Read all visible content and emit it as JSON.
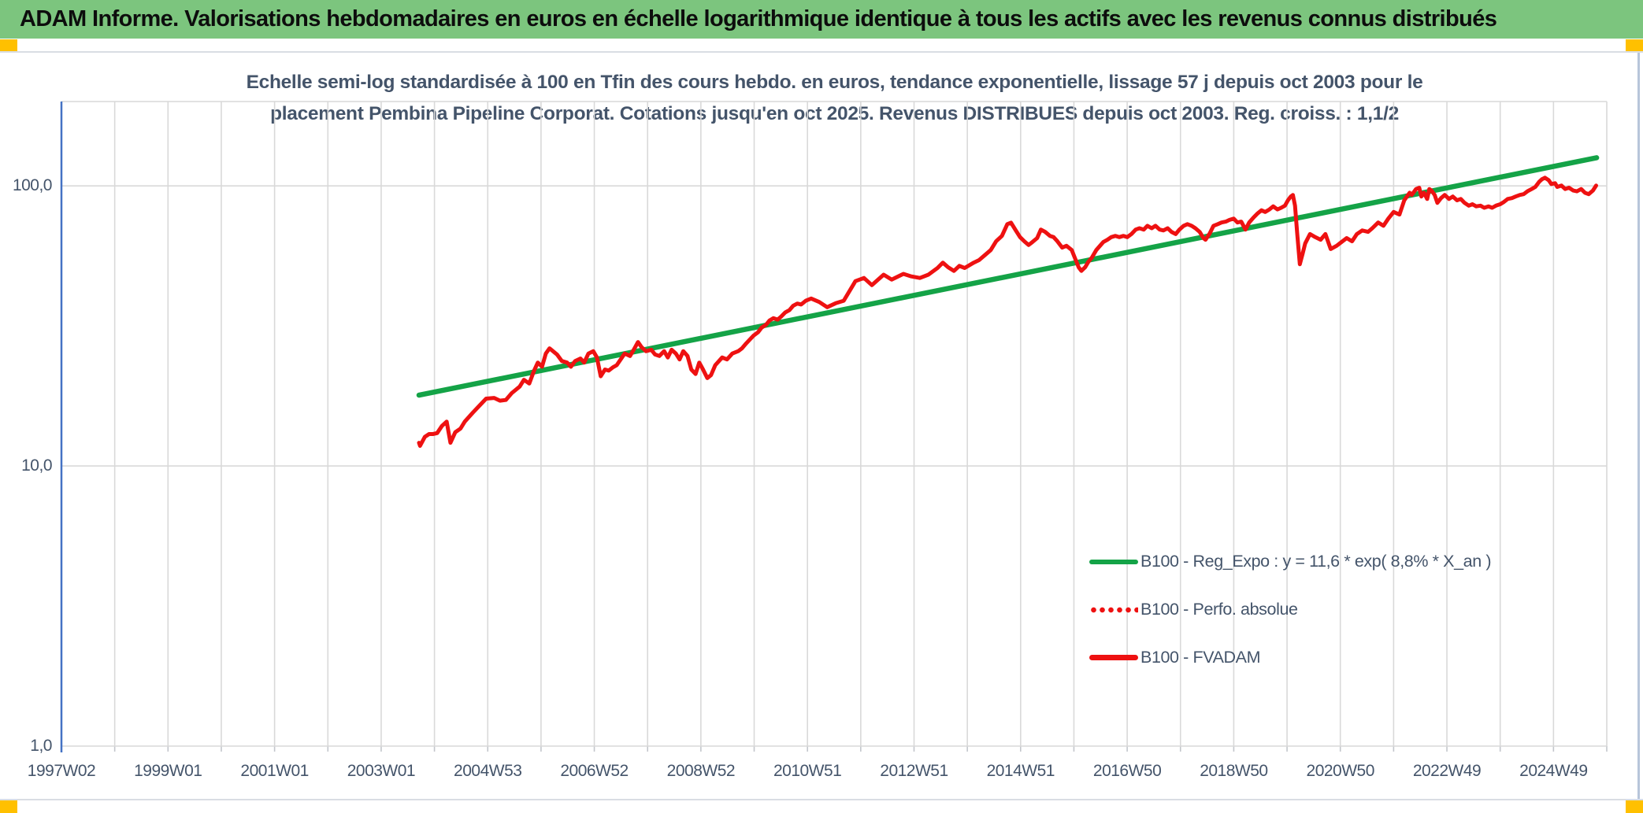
{
  "window": {
    "title": "ADAM Informe. Valorisations hebdomadaires en euros en échelle logarithmique identique à tous les actifs avec les revenus connus distribués"
  },
  "colors": {
    "header_green": "#7cc57e",
    "corner_yellow": "#ffc000",
    "trend_green": "#14a347",
    "series_red": "#ee1111",
    "grid": "#d9d9d9",
    "axis_blue": "#4472c4",
    "text_dark": "#44546a"
  },
  "chart_data": {
    "type": "line",
    "title_lines": [
      "Echelle semi-log standardisée à 100 en Tfin des cours hebdo. en euros, tendance exponentielle, lissage 57 j depuis oct 2003 pour le",
      "placement Pembina Pipeline Corporat. Cotations jusqu'en oct 2025. Revenus DISTRIBUES depuis oct 2003. Reg. croiss. : 1,1/2"
    ],
    "x_axis": {
      "tick_labels": [
        "1997W02",
        "1999W01",
        "2001W01",
        "2003W01",
        "2004W53",
        "2006W52",
        "2008W52",
        "2010W51",
        "2012W51",
        "2014W51",
        "2016W50",
        "2018W50",
        "2020W50",
        "2022W49",
        "2024W49"
      ],
      "range_years": [
        1997.03,
        2026.03
      ],
      "gridline_interval_years": 1
    },
    "y_axis": {
      "scale": "log10",
      "tick_labels": [
        "100,0",
        "10,0",
        "1,0"
      ],
      "tick_values": [
        100,
        10,
        1
      ],
      "ylim": [
        1,
        200
      ]
    },
    "legend": [
      {
        "label": "B100 - Reg_Expo : y = 11,6 * exp( 8,8% *  X_an )",
        "color": "#14a347",
        "style": "solid"
      },
      {
        "label": "B100 - Perfo. absolue",
        "color": "#ee1111",
        "style": "dotted"
      },
      {
        "label": "B100 - FVADAM",
        "color": "#ee1111",
        "style": "solid-thick"
      }
    ],
    "series": [
      {
        "name": "B100 - Reg_Expo",
        "color": "#14a347",
        "width": 6.5,
        "points": [
          [
            2003.74,
            17.9
          ],
          [
            2025.84,
            126.0
          ]
        ]
      },
      {
        "name": "B100 - FVADAM",
        "color": "#ee1111",
        "width": 5,
        "points": [
          [
            2003.74,
            12.1
          ],
          [
            2003.76,
            11.8
          ],
          [
            2003.85,
            12.7
          ],
          [
            2003.93,
            13.0
          ],
          [
            2004.0,
            13.0
          ],
          [
            2004.08,
            13.1
          ],
          [
            2004.17,
            13.9
          ],
          [
            2004.26,
            14.4
          ],
          [
            2004.33,
            12.1
          ],
          [
            2004.42,
            13.2
          ],
          [
            2004.52,
            13.6
          ],
          [
            2004.6,
            14.4
          ],
          [
            2004.75,
            15.5
          ],
          [
            2004.86,
            16.3
          ],
          [
            2005.0,
            17.4
          ],
          [
            2005.15,
            17.5
          ],
          [
            2005.26,
            17.1
          ],
          [
            2005.37,
            17.2
          ],
          [
            2005.48,
            18.2
          ],
          [
            2005.63,
            19.2
          ],
          [
            2005.71,
            20.3
          ],
          [
            2005.81,
            19.7
          ],
          [
            2005.9,
            21.9
          ],
          [
            2005.97,
            23.4
          ],
          [
            2006.05,
            22.6
          ],
          [
            2006.12,
            25.2
          ],
          [
            2006.19,
            26.3
          ],
          [
            2006.33,
            25.0
          ],
          [
            2006.42,
            23.7
          ],
          [
            2006.52,
            23.4
          ],
          [
            2006.59,
            22.6
          ],
          [
            2006.67,
            23.7
          ],
          [
            2006.77,
            24.2
          ],
          [
            2006.84,
            23.4
          ],
          [
            2006.92,
            25.2
          ],
          [
            2007.01,
            25.7
          ],
          [
            2007.08,
            24.4
          ],
          [
            2007.15,
            20.9
          ],
          [
            2007.23,
            22.1
          ],
          [
            2007.3,
            21.9
          ],
          [
            2007.38,
            22.5
          ],
          [
            2007.45,
            22.9
          ],
          [
            2007.55,
            24.4
          ],
          [
            2007.6,
            25.2
          ],
          [
            2007.7,
            24.7
          ],
          [
            2007.77,
            26.0
          ],
          [
            2007.85,
            27.7
          ],
          [
            2007.92,
            26.5
          ],
          [
            2008.0,
            25.7
          ],
          [
            2008.1,
            26.0
          ],
          [
            2008.17,
            25.0
          ],
          [
            2008.25,
            24.7
          ],
          [
            2008.34,
            25.7
          ],
          [
            2008.41,
            24.4
          ],
          [
            2008.48,
            26.0
          ],
          [
            2008.56,
            25.2
          ],
          [
            2008.63,
            24.0
          ],
          [
            2008.7,
            25.7
          ],
          [
            2008.78,
            24.7
          ],
          [
            2008.85,
            22.1
          ],
          [
            2008.93,
            21.3
          ],
          [
            2009.0,
            23.4
          ],
          [
            2009.07,
            22.1
          ],
          [
            2009.15,
            20.6
          ],
          [
            2009.22,
            21.1
          ],
          [
            2009.3,
            22.9
          ],
          [
            2009.43,
            24.4
          ],
          [
            2009.52,
            24.0
          ],
          [
            2009.62,
            25.2
          ],
          [
            2009.73,
            25.7
          ],
          [
            2009.8,
            26.3
          ],
          [
            2009.88,
            27.4
          ],
          [
            2009.95,
            28.3
          ],
          [
            2010.02,
            29.2
          ],
          [
            2010.1,
            30.0
          ],
          [
            2010.17,
            31.2
          ],
          [
            2010.25,
            31.9
          ],
          [
            2010.32,
            33.1
          ],
          [
            2010.39,
            33.7
          ],
          [
            2010.47,
            33.3
          ],
          [
            2010.54,
            34.2
          ],
          [
            2010.61,
            35.3
          ],
          [
            2010.69,
            36.0
          ],
          [
            2010.76,
            37.3
          ],
          [
            2010.84,
            38.0
          ],
          [
            2010.91,
            37.7
          ],
          [
            2011.0,
            38.9
          ],
          [
            2011.1,
            39.6
          ],
          [
            2011.25,
            38.5
          ],
          [
            2011.4,
            36.9
          ],
          [
            2011.56,
            38.1
          ],
          [
            2011.71,
            38.9
          ],
          [
            2011.93,
            45.7
          ],
          [
            2012.09,
            46.9
          ],
          [
            2012.24,
            44.2
          ],
          [
            2012.46,
            48.2
          ],
          [
            2012.61,
            46.3
          ],
          [
            2012.83,
            48.5
          ],
          [
            2012.98,
            47.5
          ],
          [
            2013.14,
            46.9
          ],
          [
            2013.3,
            48.2
          ],
          [
            2013.47,
            50.9
          ],
          [
            2013.57,
            53.2
          ],
          [
            2013.67,
            51.2
          ],
          [
            2013.78,
            49.7
          ],
          [
            2013.88,
            51.8
          ],
          [
            2013.98,
            50.9
          ],
          [
            2014.15,
            53.2
          ],
          [
            2014.25,
            54.3
          ],
          [
            2014.35,
            56.4
          ],
          [
            2014.47,
            59.0
          ],
          [
            2014.57,
            63.4
          ],
          [
            2014.68,
            66.3
          ],
          [
            2014.78,
            73.0
          ],
          [
            2014.85,
            73.9
          ],
          [
            2014.94,
            69.3
          ],
          [
            2015.02,
            65.6
          ],
          [
            2015.1,
            63.4
          ],
          [
            2015.18,
            61.5
          ],
          [
            2015.25,
            63.0
          ],
          [
            2015.34,
            65.1
          ],
          [
            2015.41,
            69.8
          ],
          [
            2015.49,
            68.5
          ],
          [
            2015.58,
            66.3
          ],
          [
            2015.65,
            65.6
          ],
          [
            2015.72,
            63.4
          ],
          [
            2015.81,
            60.2
          ],
          [
            2015.89,
            61.1
          ],
          [
            2015.99,
            59.0
          ],
          [
            2016.05,
            55.2
          ],
          [
            2016.12,
            51.2
          ],
          [
            2016.17,
            49.7
          ],
          [
            2016.24,
            51.2
          ],
          [
            2016.3,
            53.5
          ],
          [
            2016.37,
            55.6
          ],
          [
            2016.45,
            59.0
          ],
          [
            2016.52,
            61.1
          ],
          [
            2016.58,
            63.0
          ],
          [
            2016.66,
            64.2
          ],
          [
            2016.73,
            65.6
          ],
          [
            2016.81,
            66.3
          ],
          [
            2016.88,
            65.6
          ],
          [
            2016.96,
            66.3
          ],
          [
            2017.03,
            65.6
          ],
          [
            2017.11,
            67.3
          ],
          [
            2017.19,
            69.8
          ],
          [
            2017.26,
            70.6
          ],
          [
            2017.34,
            69.8
          ],
          [
            2017.41,
            72.0
          ],
          [
            2017.49,
            70.6
          ],
          [
            2017.56,
            72.0
          ],
          [
            2017.64,
            69.8
          ],
          [
            2017.71,
            69.3
          ],
          [
            2017.79,
            70.6
          ],
          [
            2017.86,
            68.5
          ],
          [
            2017.94,
            67.3
          ],
          [
            2018.01,
            69.8
          ],
          [
            2018.09,
            72.0
          ],
          [
            2018.16,
            73.0
          ],
          [
            2018.24,
            72.0
          ],
          [
            2018.31,
            70.6
          ],
          [
            2018.39,
            68.5
          ],
          [
            2018.46,
            65.1
          ],
          [
            2018.5,
            64.2
          ],
          [
            2018.58,
            67.7
          ],
          [
            2018.65,
            72.0
          ],
          [
            2018.73,
            73.0
          ],
          [
            2018.8,
            74.0
          ],
          [
            2018.88,
            74.5
          ],
          [
            2018.95,
            75.6
          ],
          [
            2019.03,
            76.4
          ],
          [
            2019.1,
            74.0
          ],
          [
            2019.17,
            74.5
          ],
          [
            2019.25,
            69.8
          ],
          [
            2019.32,
            74.0
          ],
          [
            2019.4,
            77.0
          ],
          [
            2019.47,
            79.5
          ],
          [
            2019.55,
            81.8
          ],
          [
            2019.62,
            80.7
          ],
          [
            2019.7,
            82.4
          ],
          [
            2019.77,
            84.5
          ],
          [
            2019.85,
            82.4
          ],
          [
            2019.92,
            83.5
          ],
          [
            2019.99,
            85.0
          ],
          [
            2020.05,
            89.0
          ],
          [
            2020.1,
            91.6
          ],
          [
            2020.14,
            92.8
          ],
          [
            2020.18,
            85.0
          ],
          [
            2020.22,
            68.0
          ],
          [
            2020.27,
            52.5
          ],
          [
            2020.32,
            57.0
          ],
          [
            2020.37,
            62.3
          ],
          [
            2020.46,
            67.3
          ],
          [
            2020.56,
            65.6
          ],
          [
            2020.66,
            64.2
          ],
          [
            2020.75,
            67.3
          ],
          [
            2020.85,
            59.5
          ],
          [
            2020.96,
            61.1
          ],
          [
            2021.05,
            63.0
          ],
          [
            2021.15,
            65.1
          ],
          [
            2021.25,
            63.4
          ],
          [
            2021.34,
            67.3
          ],
          [
            2021.44,
            69.3
          ],
          [
            2021.55,
            68.5
          ],
          [
            2021.63,
            70.6
          ],
          [
            2021.74,
            74.0
          ],
          [
            2021.84,
            72.0
          ],
          [
            2021.93,
            76.4
          ],
          [
            2022.03,
            80.7
          ],
          [
            2022.14,
            79.0
          ],
          [
            2022.23,
            88.8
          ],
          [
            2022.33,
            94.5
          ],
          [
            2022.37,
            92.8
          ],
          [
            2022.45,
            97.4
          ],
          [
            2022.51,
            98.5
          ],
          [
            2022.55,
            91.6
          ],
          [
            2022.6,
            94.5
          ],
          [
            2022.66,
            89.8
          ],
          [
            2022.7,
            97.4
          ],
          [
            2022.74,
            96.2
          ],
          [
            2022.8,
            92.8
          ],
          [
            2022.85,
            87.0
          ],
          [
            2022.92,
            90.4
          ],
          [
            2022.99,
            92.8
          ],
          [
            2023.07,
            89.8
          ],
          [
            2023.14,
            91.6
          ],
          [
            2023.22,
            88.8
          ],
          [
            2023.29,
            89.8
          ],
          [
            2023.36,
            87.0
          ],
          [
            2023.44,
            85.0
          ],
          [
            2023.51,
            86.0
          ],
          [
            2023.58,
            84.5
          ],
          [
            2023.66,
            85.0
          ],
          [
            2023.73,
            83.5
          ],
          [
            2023.81,
            84.5
          ],
          [
            2023.88,
            83.5
          ],
          [
            2023.95,
            85.0
          ],
          [
            2024.03,
            86.0
          ],
          [
            2024.1,
            87.6
          ],
          [
            2024.17,
            89.8
          ],
          [
            2024.25,
            90.4
          ],
          [
            2024.32,
            91.6
          ],
          [
            2024.4,
            92.8
          ],
          [
            2024.47,
            93.4
          ],
          [
            2024.54,
            95.6
          ],
          [
            2024.62,
            97.4
          ],
          [
            2024.69,
            99.1
          ],
          [
            2024.76,
            103.3
          ],
          [
            2024.81,
            105.5
          ],
          [
            2024.87,
            106.9
          ],
          [
            2024.94,
            104.7
          ],
          [
            2024.99,
            101.5
          ],
          [
            2025.06,
            102.2
          ],
          [
            2025.1,
            99.1
          ],
          [
            2025.18,
            100.2
          ],
          [
            2025.25,
            97.4
          ],
          [
            2025.32,
            98.5
          ],
          [
            2025.4,
            96.2
          ],
          [
            2025.47,
            95.6
          ],
          [
            2025.55,
            97.4
          ],
          [
            2025.62,
            94.5
          ],
          [
            2025.69,
            93.4
          ],
          [
            2025.77,
            96.2
          ],
          [
            2025.83,
            100.2
          ]
        ]
      }
    ]
  }
}
